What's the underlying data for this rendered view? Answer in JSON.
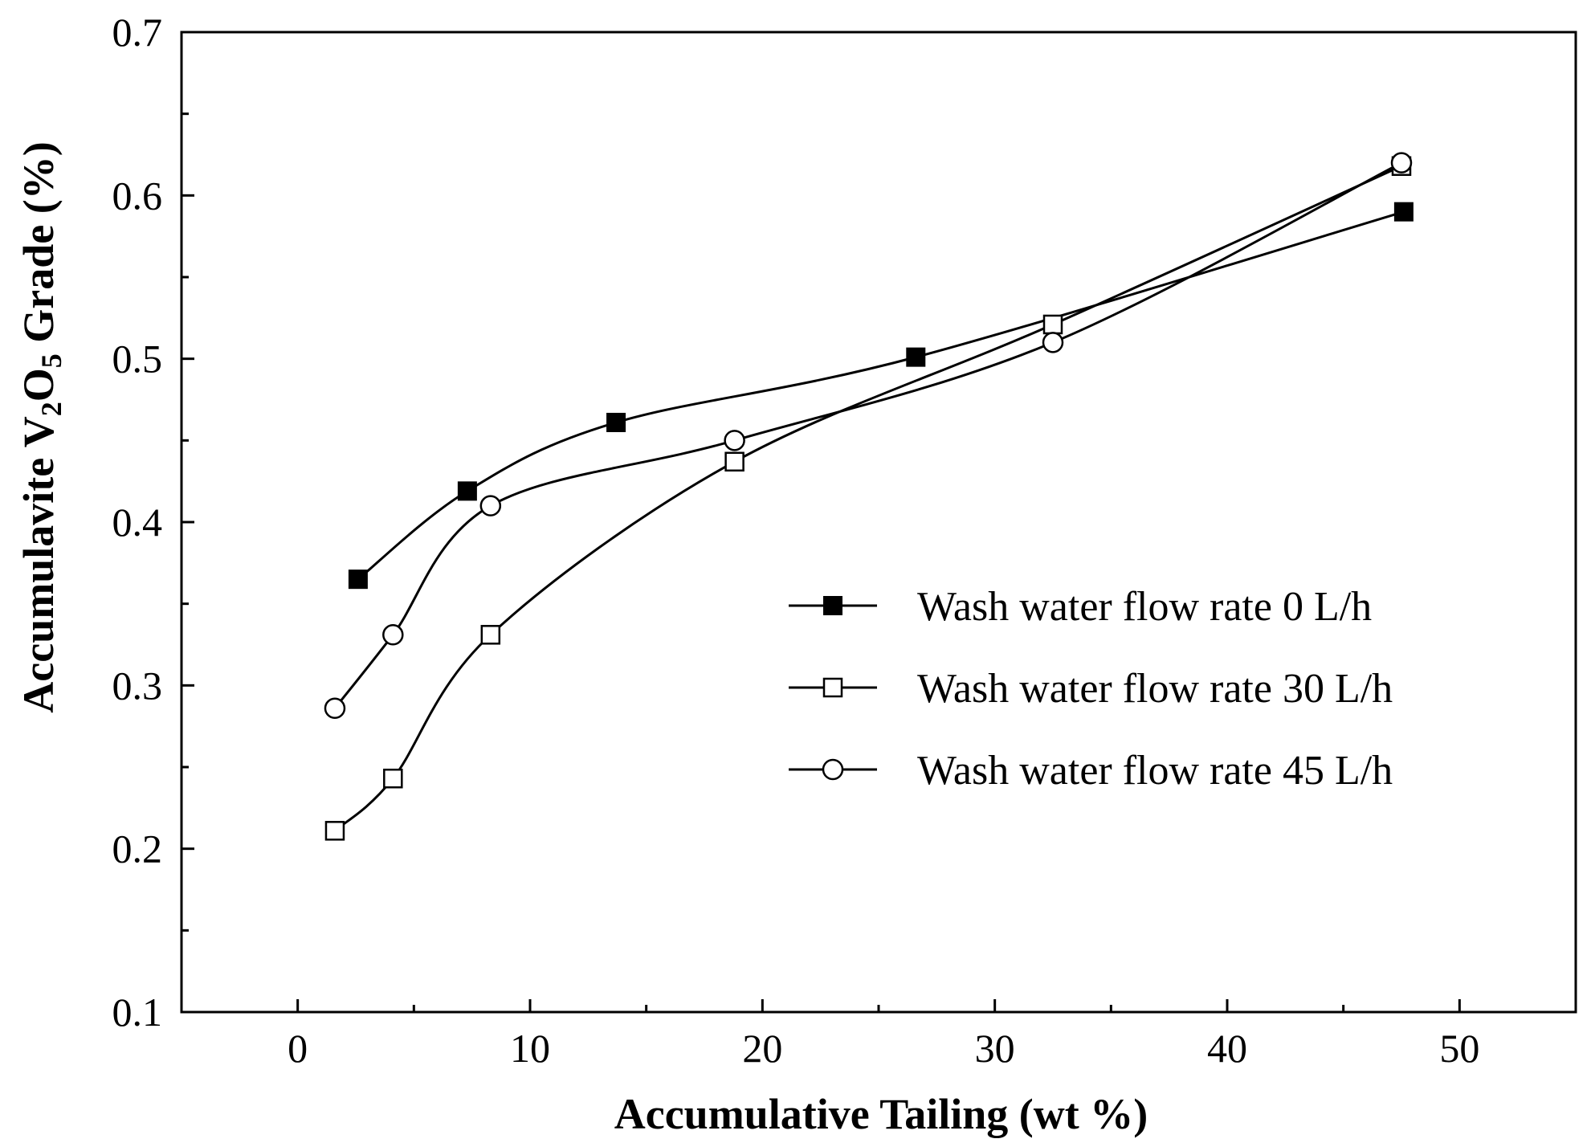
{
  "chart_data": {
    "type": "line",
    "xlabel": "Accumulative Tailing (wt %)",
    "ylabel": {
      "prefix": "Accumulavite V",
      "sub1": "2",
      "mid": "O",
      "sub2": "5",
      "suffix": " Grade (%)"
    },
    "xlim": [
      -5,
      55
    ],
    "ylim": [
      0.1,
      0.7
    ],
    "xticks": [
      0,
      10,
      20,
      30,
      40,
      50
    ],
    "xtick_labels": [
      "0",
      "10",
      "20",
      "30",
      "40",
      "50"
    ],
    "yticks": [
      0.1,
      0.2,
      0.3,
      0.4,
      0.5,
      0.6,
      0.7
    ],
    "ytick_labels": [
      "0.1",
      "0.2",
      "0.3",
      "0.4",
      "0.5",
      "0.6",
      "0.7"
    ],
    "grid": false,
    "legend_position": "center-right",
    "series": [
      {
        "name": "Wash water flow rate 0 L/h",
        "marker": "filled-square",
        "color": "#000000",
        "x": [
          2.6,
          7.3,
          13.7,
          26.6,
          47.6
        ],
        "y": [
          0.365,
          0.419,
          0.461,
          0.501,
          0.59
        ]
      },
      {
        "name": "Wash water flow rate 30 L/h",
        "marker": "open-square",
        "color": "#000000",
        "x": [
          1.6,
          4.1,
          8.3,
          18.8,
          32.5,
          47.5
        ],
        "y": [
          0.211,
          0.243,
          0.331,
          0.437,
          0.521,
          0.618
        ]
      },
      {
        "name": "Wash water flow rate 45 L/h",
        "marker": "open-circle",
        "color": "#000000",
        "x": [
          1.6,
          4.1,
          8.3,
          18.8,
          32.5,
          47.5
        ],
        "y": [
          0.286,
          0.331,
          0.41,
          0.45,
          0.51,
          0.62
        ]
      }
    ]
  }
}
